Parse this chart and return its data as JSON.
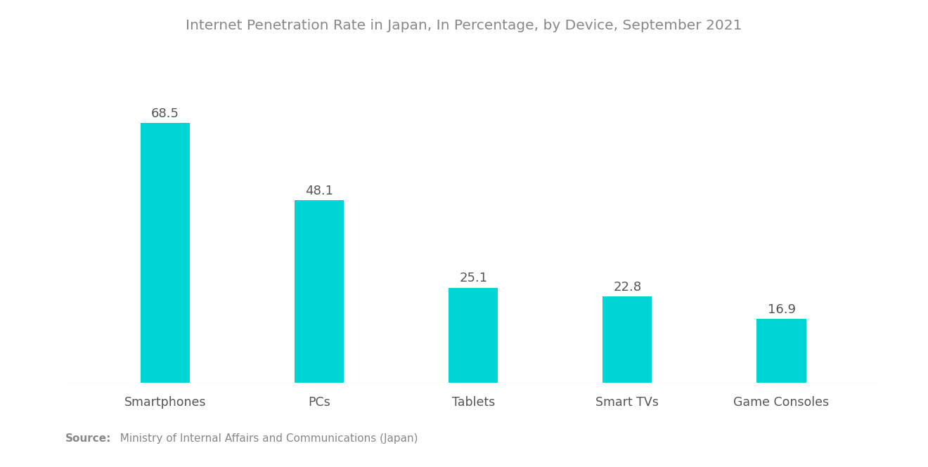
{
  "title": "Internet Penetration Rate in Japan, In Percentage, by Device, September 2021",
  "categories": [
    "Smartphones",
    "PCs",
    "Tablets",
    "Smart TVs",
    "Game Consoles"
  ],
  "values": [
    68.5,
    48.1,
    25.1,
    22.8,
    16.9
  ],
  "bar_color": "#00D5D5",
  "value_color": "#555555",
  "label_color": "#555555",
  "title_color": "#888888",
  "background_color": "#ffffff",
  "source_bold": "Source:",
  "source_text": "  Ministry of Internal Affairs and Communications (Japan)",
  "source_color": "#888888",
  "ylim": [
    0,
    80
  ],
  "bar_width": 0.32,
  "title_fontsize": 14.5,
  "label_fontsize": 12.5,
  "value_fontsize": 13,
  "source_fontsize": 11
}
